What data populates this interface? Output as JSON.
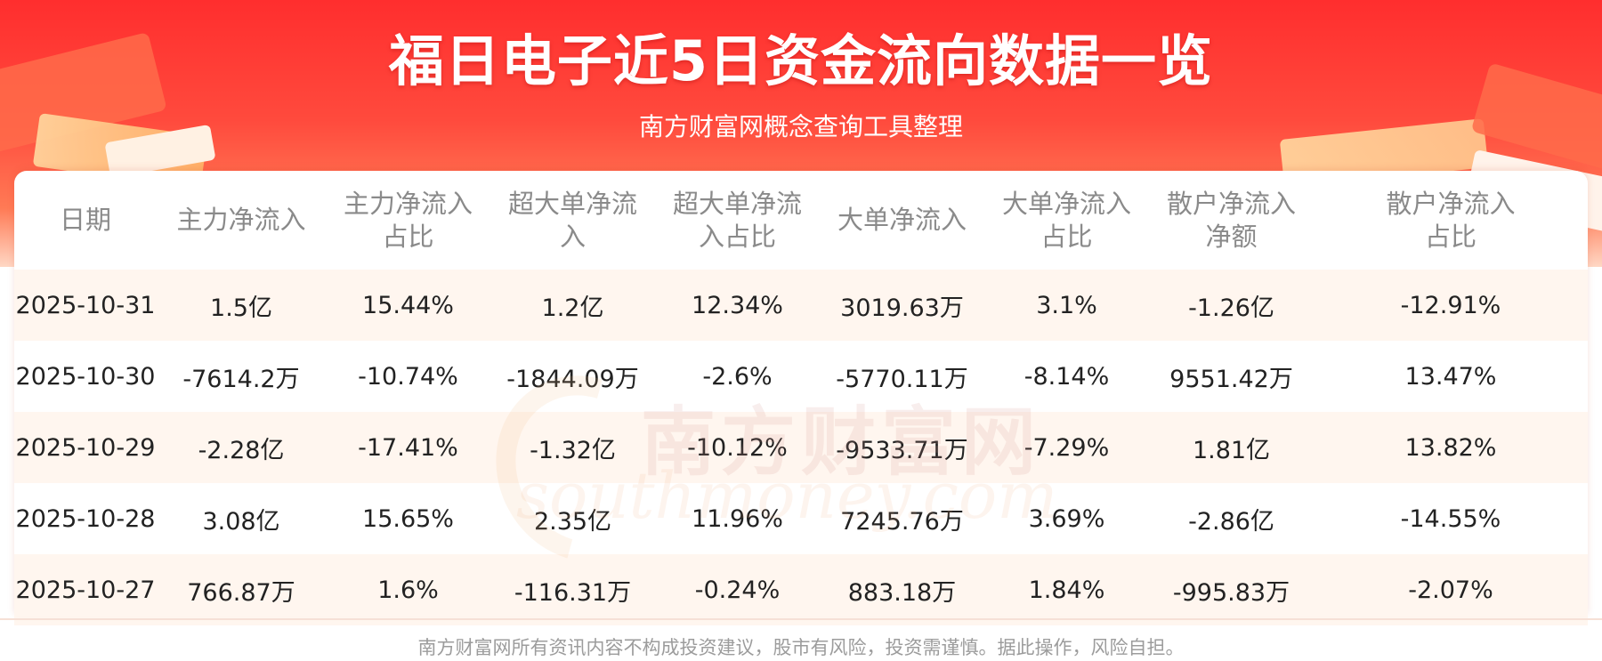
{
  "header": {
    "title": "福日电子近5日资金流向数据一览",
    "subtitle": "南方财富网概念查询工具整理"
  },
  "table": {
    "columns": [
      [
        "日期"
      ],
      [
        "主力净流入"
      ],
      [
        "主力净流入",
        "占比"
      ],
      [
        "超大单净流",
        "入"
      ],
      [
        "超大单净流",
        "入占比"
      ],
      [
        "大单净流入"
      ],
      [
        "大单净流入",
        "占比"
      ],
      [
        "散户净流入",
        "净额"
      ],
      [
        "散户净流入",
        "占比"
      ]
    ],
    "rows": [
      [
        "2025-10-31",
        "1.5亿",
        "15.44%",
        "1.2亿",
        "12.34%",
        "3019.63万",
        "3.1%",
        "-1.26亿",
        "-12.91%"
      ],
      [
        "2025-10-30",
        "-7614.2万",
        "-10.74%",
        "-1844.09万",
        "-2.6%",
        "-5770.11万",
        "-8.14%",
        "9551.42万",
        "13.47%"
      ],
      [
        "2025-10-29",
        "-2.28亿",
        "-17.41%",
        "-1.32亿",
        "-10.12%",
        "-9533.71万",
        "-7.29%",
        "1.81亿",
        "13.82%"
      ],
      [
        "2025-10-28",
        "3.08亿",
        "15.65%",
        "2.35亿",
        "11.96%",
        "7245.76万",
        "3.69%",
        "-2.86亿",
        "-14.55%"
      ],
      [
        "2025-10-27",
        "766.87万",
        "1.6%",
        "-116.31万",
        "-0.24%",
        "883.18万",
        "1.84%",
        "-995.83万",
        "-2.07%"
      ]
    ]
  },
  "watermark": {
    "cn": "南方财富网",
    "en": "southmoney.com"
  },
  "footer": {
    "disclaimer": "南方财富网所有资讯内容不构成投资建议，股市有风险，投资需谨慎。据此操作，风险自担。"
  },
  "colors": {
    "banner_red": "#ff2e2e",
    "header_text": "#8a8a8a",
    "odd_row_bg": "#fff4ec"
  }
}
